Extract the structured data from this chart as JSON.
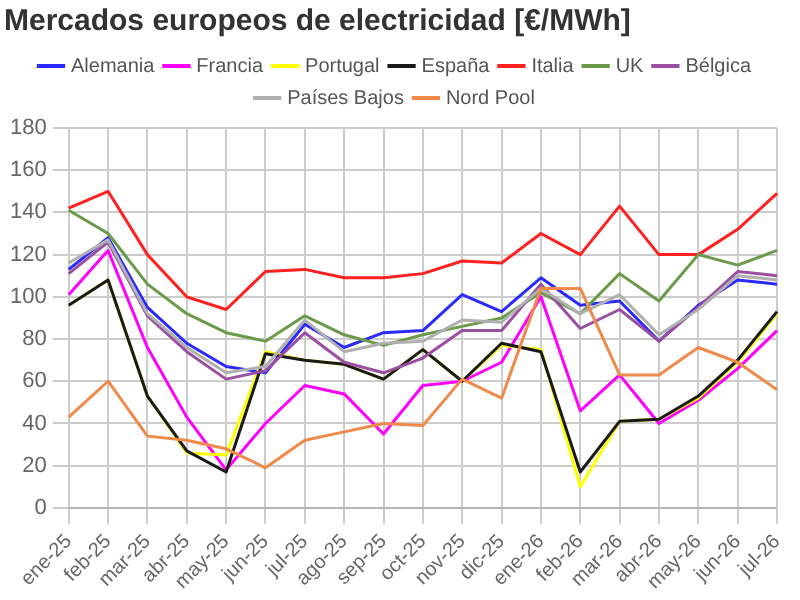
{
  "chart_data": {
    "type": "line",
    "title": "Mercados europeos de electricidad [€/MWh]",
    "categories": [
      "ene-25",
      "feb-25",
      "mar-25",
      "abr-25",
      "may-25",
      "jun-25",
      "jul-25",
      "ago-25",
      "sep-25",
      "oct-25",
      "nov-25",
      "dic-25",
      "ene-26",
      "feb-26",
      "mar-26",
      "abr-26",
      "may-26",
      "jun-26",
      "jul-26"
    ],
    "series": [
      {
        "name": "Alemania",
        "color": "#2a2aff",
        "values": [
          113,
          128,
          95,
          78,
          67,
          64,
          87,
          76,
          83,
          84,
          101,
          93,
          109,
          96,
          98,
          79,
          96,
          108,
          106
        ]
      },
      {
        "name": "Francia",
        "color": "#ff00ff",
        "values": [
          101,
          122,
          76,
          43,
          18,
          40,
          58,
          54,
          35,
          58,
          60,
          69,
          100,
          46,
          63,
          40,
          51,
          66,
          84
        ]
      },
      {
        "name": "Portugal",
        "color": "#ffff00",
        "values": [
          96,
          108,
          53,
          26,
          25,
          74,
          70,
          68,
          61,
          75,
          60,
          77,
          75,
          10,
          41,
          42,
          52,
          69,
          92
        ]
      },
      {
        "name": "España",
        "color": "#1a1a1a",
        "values": [
          96,
          108,
          53,
          27,
          17,
          73,
          70,
          68,
          61,
          75,
          60,
          78,
          74,
          17,
          41,
          42,
          53,
          70,
          93
        ]
      },
      {
        "name": "Italia",
        "color": "#ff2020",
        "values": [
          142,
          150,
          120,
          100,
          94,
          112,
          113,
          109,
          109,
          111,
          117,
          116,
          130,
          120,
          143,
          120,
          120,
          132,
          149
        ]
      },
      {
        "name": "UK",
        "color": "#6a9a4a",
        "values": [
          141,
          130,
          106,
          92,
          83,
          79,
          91,
          82,
          77,
          82,
          86,
          90,
          102,
          92,
          111,
          98,
          120,
          115,
          122
        ]
      },
      {
        "name": "Bélgica",
        "color": "#9b4fa0",
        "values": [
          111,
          126,
          91,
          74,
          61,
          65,
          83,
          69,
          64,
          71,
          84,
          84,
          106,
          85,
          94,
          79,
          95,
          112,
          110
        ]
      },
      {
        "name": "Países Bajos",
        "color": "#b0b0b0",
        "values": [
          116,
          127,
          92,
          76,
          64,
          67,
          89,
          74,
          78,
          79,
          89,
          88,
          104,
          92,
          101,
          82,
          94,
          110,
          108
        ]
      },
      {
        "name": "Nord Pool",
        "color": "#f08a4b",
        "values": [
          43,
          60,
          34,
          32,
          28,
          19,
          32,
          36,
          40,
          39,
          61,
          52,
          104,
          104,
          63,
          63,
          76,
          69,
          56
        ]
      }
    ],
    "ylim": [
      0,
      180
    ],
    "yticks": [
      0,
      20,
      40,
      60,
      80,
      100,
      120,
      140,
      160,
      180
    ],
    "grid": true,
    "legend": "top",
    "marker": "none",
    "line_style": "solid"
  }
}
